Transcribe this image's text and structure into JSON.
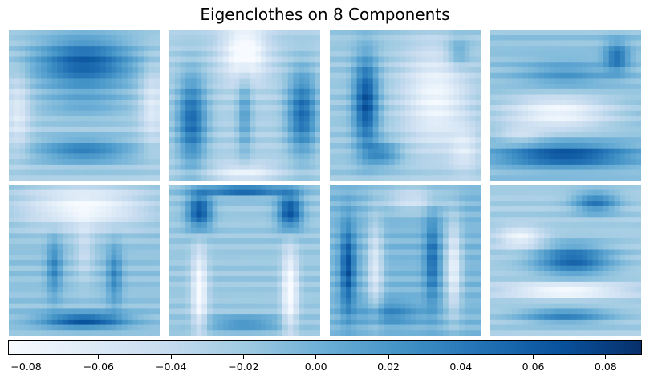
{
  "chart_data": {
    "type": "heatmap",
    "title": "Eigenclothes on 8 Components",
    "layout": "2 rows x 4 columns of component images",
    "components": [
      {
        "index": 1,
        "description": "dark upper body blob, dark lower band"
      },
      {
        "index": 2,
        "description": "light center column, dark left and right vertical bands"
      },
      {
        "index": 3,
        "description": "dark left sleeve band, light right side"
      },
      {
        "index": 4,
        "description": "light middle, dark bottom band"
      },
      {
        "index": 5,
        "description": "light top, vertical stripes, dark bottom band"
      },
      {
        "index": 6,
        "description": "dark shoulder arch (t-shirt outline), light vertical lines"
      },
      {
        "index": 7,
        "description": "vertical light and dark stripes (long sleeve outline)"
      },
      {
        "index": 8,
        "description": "horizontal bands, dark middle-right region"
      }
    ],
    "colormap": "Blues",
    "colorbar": {
      "orientation": "horizontal",
      "range": [
        -0.085,
        0.09
      ],
      "ticks": [
        -0.08,
        -0.06,
        -0.04,
        -0.02,
        0.0,
        0.02,
        0.04,
        0.06,
        0.08
      ],
      "tick_labels": [
        "−0.08",
        "−0.06",
        "−0.04",
        "−0.02",
        "0.00",
        "0.02",
        "0.04",
        "0.06",
        "0.08"
      ]
    }
  }
}
